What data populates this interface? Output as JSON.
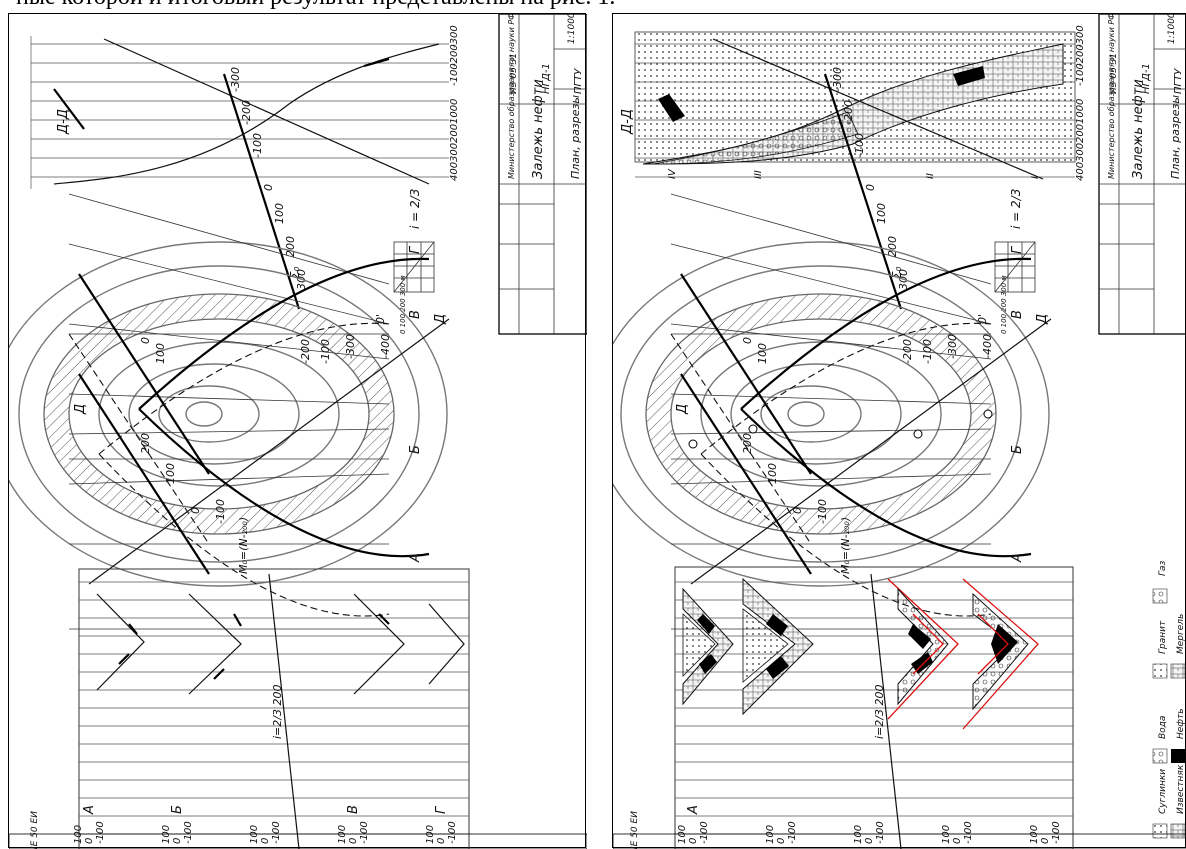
{
  "caption": "ные которой и итоговый результат представлены на рис. 1.",
  "left": {
    "sheet_code": "IE 50 EИ",
    "profile_label": "Д-Д",
    "profile_ticks": [
      "-300",
      "-200",
      "-100",
      "0",
      "100",
      "200",
      "300",
      "400"
    ],
    "plan_labels": [
      "А",
      "Б",
      "В",
      "Г",
      "Д",
      "Д",
      "0'"
    ],
    "plan_contours": [
      "200",
      "100",
      "0",
      "-100",
      "100",
      "0",
      "-100",
      "-200",
      "-300",
      "-400"
    ],
    "sigma_ticks": [
      "-300",
      "-200",
      "-100",
      "0",
      "100",
      "200",
      "300"
    ],
    "sigma_label": "Σ₀",
    "section_rows": [
      {
        "letter": "А",
        "ticks": [
          "100",
          "0",
          "-100"
        ]
      },
      {
        "letter": "Б",
        "ticks": [
          "100",
          "0",
          "-100"
        ]
      },
      {
        "letter": "",
        "ticks": [
          "100",
          "0",
          "-100"
        ]
      },
      {
        "letter": "В",
        "ticks": [
          "100",
          "0",
          "-100"
        ]
      },
      {
        "letter": "Г",
        "ticks": [
          "100",
          "0",
          "-100"
        ]
      }
    ],
    "gradient": "i=2/3  200",
    "m_label": "M₀=(N-₂₀₀)",
    "scale_numbers": "0   100  200  300 м",
    "scale_i": "i = 2/3",
    "title_block": {
      "ministry": "Министерство образования и науки РФ",
      "doc_code": "ИЗ 05 31",
      "code": "НГД-1",
      "scale": "1:10000",
      "title": "Залежь нефти",
      "subtitle": "План, разрезы",
      "org": "ПГТУ"
    }
  },
  "right": {
    "sheet_code": "IE 50 EИ",
    "profile_label": "Д-Д",
    "profile_ticks": [
      "-300",
      "-200",
      "-100",
      "0",
      "100",
      "200",
      "300",
      "400"
    ],
    "roman": [
      "IV",
      "III",
      "II",
      "I"
    ],
    "plan_labels": [
      "А",
      "Б",
      "В",
      "Г",
      "Д",
      "Д",
      "0'"
    ],
    "plan_contours": [
      "200",
      "100",
      "0",
      "-100",
      "100",
      "0",
      "-100",
      "-200",
      "-300",
      "-400"
    ],
    "sigma_ticks": [
      "-300",
      "-200",
      "-100",
      "0",
      "100",
      "200",
      "300"
    ],
    "sigma_label": "Σ₀",
    "section_rows": [
      {
        "letter": "А",
        "ticks": [
          "100",
          "0",
          "-100"
        ]
      },
      {
        "letter": "",
        "ticks": [
          "100",
          "0",
          "-100"
        ]
      },
      {
        "letter": "",
        "ticks": [
          "100",
          "0",
          "-100"
        ]
      },
      {
        "letter": "",
        "ticks": [
          "100",
          "0",
          "-100"
        ]
      },
      {
        "letter": "",
        "ticks": [
          "100",
          "0",
          "-100"
        ]
      }
    ],
    "gradient": "i=2/3  200",
    "m_label": "M₀=(N-₂₀₀)",
    "legend": [
      "Суглинки",
      "Вода",
      "Гранит",
      "Газ",
      "Известняк",
      "Нефть",
      "Мергель"
    ],
    "scale_numbers": "0   100  200  300 м",
    "scale_i": "i = 2/3",
    "title_block": {
      "ministry": "Министерство образования и науки РФ",
      "doc_code": "ИЗ 05 31",
      "code": "НГД-1",
      "scale": "1:10000",
      "title": "Залежь нефти",
      "subtitle": "План, разрезы",
      "org": "ПГТУ"
    }
  }
}
